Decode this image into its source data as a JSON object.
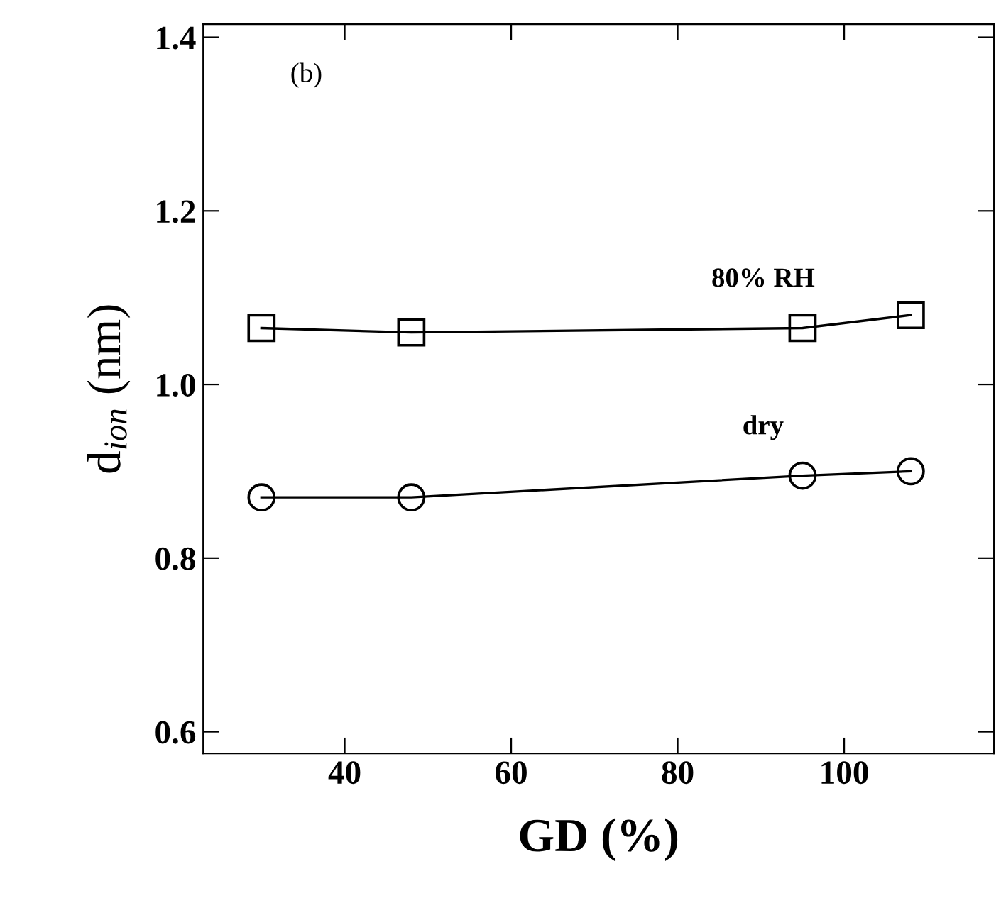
{
  "chart_data": {
    "type": "line",
    "xlabel": "GD (%)",
    "ylabel": "d$_{ion}$ (nm)",
    "annotations": [
      "(b)"
    ],
    "x": [
      30,
      48,
      95,
      108
    ],
    "series": [
      {
        "name": "80% RH",
        "color": "#000000",
        "marker": "square",
        "values": [
          1.065,
          1.06,
          1.065,
          1.08
        ]
      },
      {
        "name": "dry",
        "color": "#000000",
        "marker": "circle",
        "values": [
          0.87,
          0.87,
          0.895,
          0.9
        ]
      }
    ],
    "xlim": [
      23,
      118
    ],
    "ylim": [
      0.575,
      1.415
    ],
    "xticks": [
      40,
      60,
      80,
      100
    ],
    "yticks": [
      {
        "value": 0.6,
        "label": "0.6"
      },
      {
        "value": 0.8,
        "label": "0.8"
      },
      {
        "value": 1.0,
        "label": "1.0"
      },
      {
        "value": 1.2,
        "label": "1.2"
      },
      {
        "value": 1.4,
        "label": "1.4"
      }
    ],
    "grid": false,
    "legend": false,
    "line_style": "solid"
  }
}
